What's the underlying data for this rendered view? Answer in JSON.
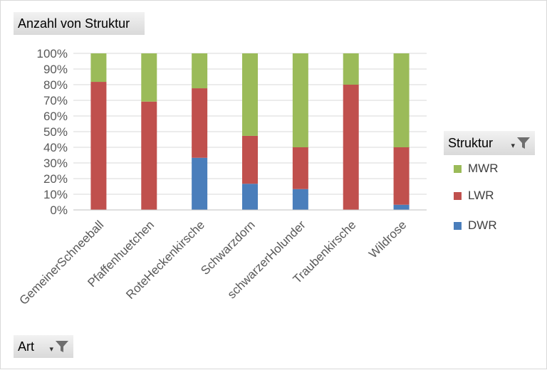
{
  "pivot": {
    "values_field": "Anzahl von Struktur",
    "legend_field": "Struktur",
    "axis_field": "Art"
  },
  "chart_data": {
    "type": "bar",
    "stacked": true,
    "percent": true,
    "categories": [
      "GemeinerSchneeball",
      "Pfaffenhuetchen",
      "RoteHeckenkirsche",
      "Schwarzdorn",
      "schwarzerHolunder",
      "Traubenkirsche",
      "Wildrose"
    ],
    "series": [
      {
        "name": "DWR",
        "color": "#4a7ebb",
        "values": [
          0,
          0,
          33.3,
          16.7,
          13.3,
          0,
          3.3
        ]
      },
      {
        "name": "LWR",
        "color": "#c0504d",
        "values": [
          81.8,
          69.2,
          44.4,
          30.6,
          26.7,
          80.0,
          36.7
        ]
      },
      {
        "name": "MWR",
        "color": "#9bbb59",
        "values": [
          18.2,
          30.8,
          22.3,
          52.7,
          60.0,
          20.0,
          60.0
        ]
      }
    ],
    "legend_order": [
      "MWR",
      "LWR",
      "DWR"
    ],
    "yticks": [
      "0%",
      "10%",
      "20%",
      "30%",
      "40%",
      "50%",
      "60%",
      "70%",
      "80%",
      "90%",
      "100%"
    ],
    "ylim": [
      0,
      100
    ],
    "grid": true,
    "legend_position": "right"
  }
}
